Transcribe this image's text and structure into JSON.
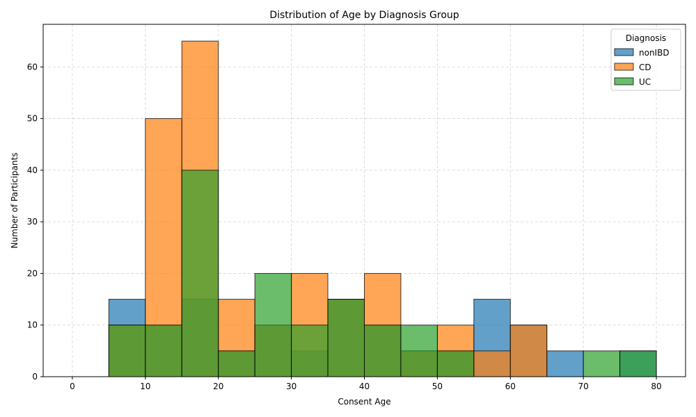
{
  "chart_data": {
    "type": "bar",
    "title": "Distribution of Age by Diagnosis Group",
    "xlabel": "Consent Age",
    "ylabel": "Number of Participants",
    "xlim": [
      -4,
      84
    ],
    "ylim": [
      0,
      68.25
    ],
    "xticks": [
      0,
      10,
      20,
      30,
      40,
      50,
      60,
      70,
      80
    ],
    "yticks": [
      0,
      10,
      20,
      30,
      40,
      50,
      60
    ],
    "bin_edges": [
      0,
      5,
      10,
      15,
      20,
      25,
      30,
      35,
      40,
      45,
      50,
      55,
      60,
      65,
      70,
      75,
      80
    ],
    "grid": true,
    "legend": {
      "title": "Diagnosis",
      "placement": "top-right"
    },
    "series": [
      {
        "name": "nonIBD",
        "color": "#1f77b4",
        "values": [
          0,
          15,
          10,
          15,
          5,
          10,
          5,
          15,
          10,
          5,
          5,
          15,
          10,
          5,
          0,
          5
        ]
      },
      {
        "name": "CD",
        "color": "#ff7f0e",
        "values": [
          0,
          10,
          50,
          65,
          15,
          10,
          20,
          15,
          20,
          5,
          10,
          5,
          10,
          0,
          0,
          0
        ]
      },
      {
        "name": "UC",
        "color": "#2ca02c",
        "values": [
          0,
          10,
          10,
          40,
          5,
          20,
          10,
          15,
          10,
          10,
          5,
          0,
          0,
          0,
          5,
          5
        ]
      }
    ]
  }
}
